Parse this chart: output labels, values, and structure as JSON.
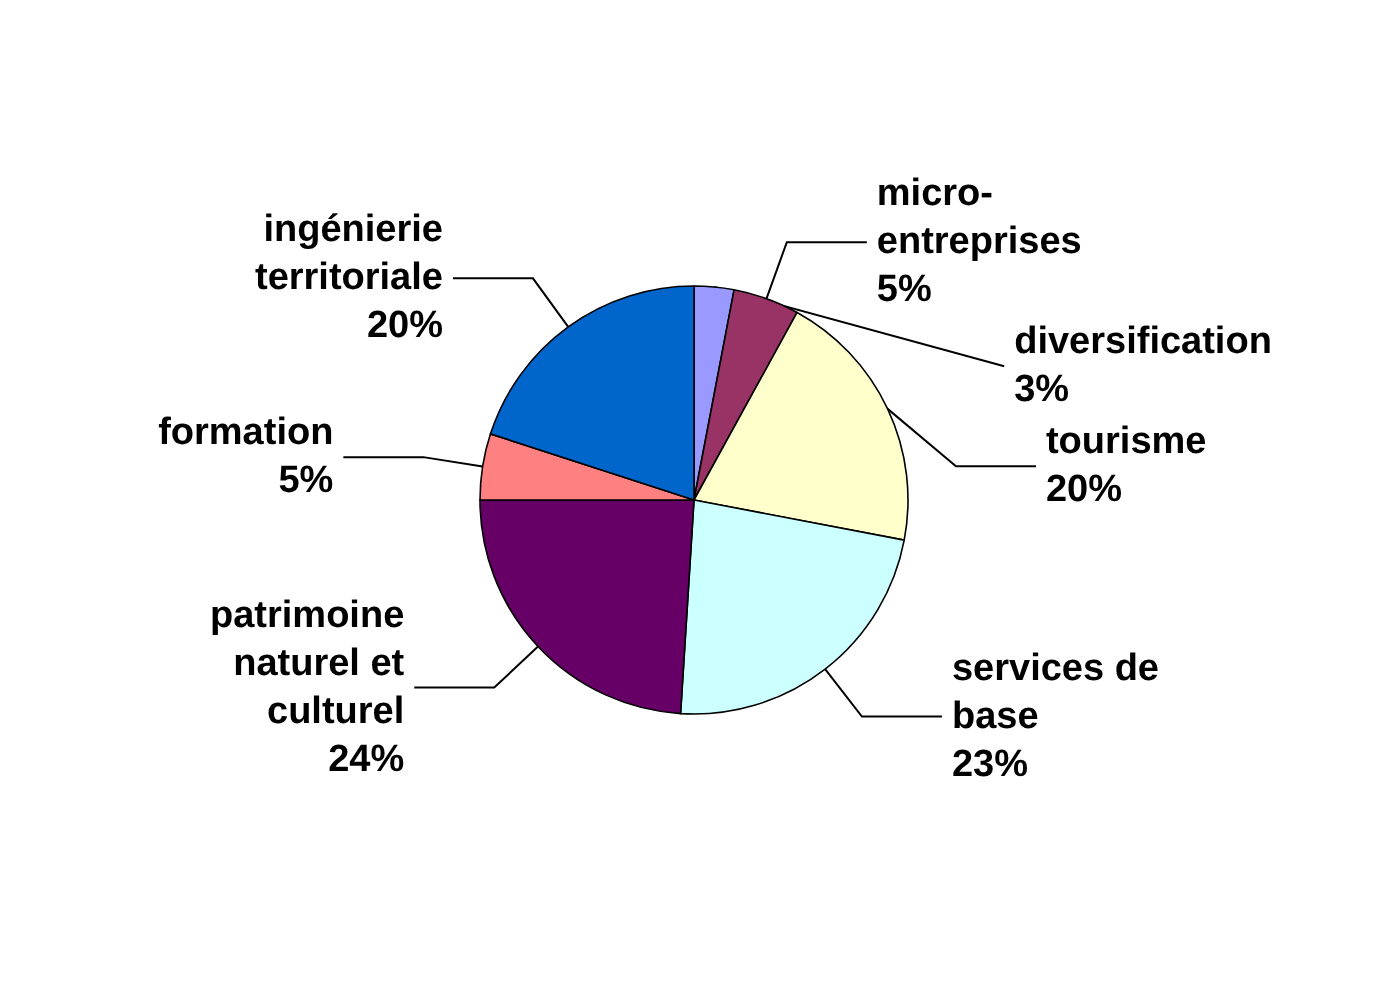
{
  "chart_data": {
    "type": "pie",
    "categories": [
      "diversification",
      "micro-\nentreprises",
      "tourisme",
      "services de\nbase",
      "patrimoine\nnaturel et\nculturel",
      "formation",
      "ingénierie\nterritoriale"
    ],
    "values": [
      3,
      5,
      20,
      23,
      24,
      5,
      20
    ],
    "colors": [
      "#9999ff",
      "#993366",
      "#ffffcc",
      "#ccffff",
      "#660066",
      "#ff8080",
      "#0066cc"
    ],
    "value_labels": [
      "3%",
      "5%",
      "20%",
      "23%",
      "24%",
      "5%",
      "20%"
    ],
    "legend": false
  }
}
